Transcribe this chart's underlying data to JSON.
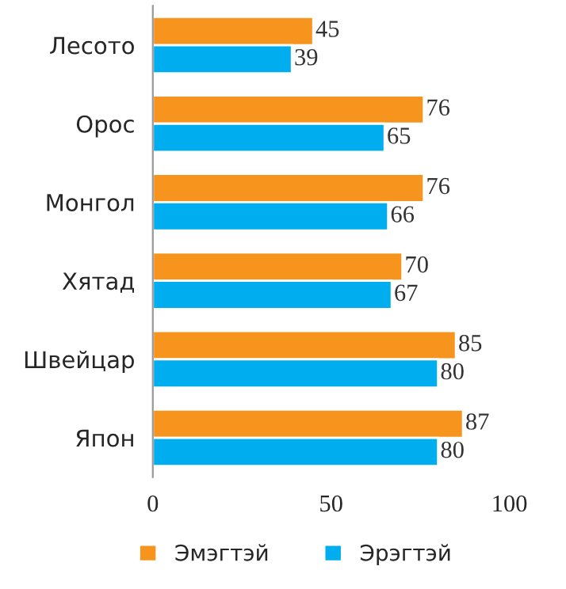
{
  "chart_data": {
    "type": "bar",
    "orientation": "horizontal",
    "categories": [
      "Лесото",
      "Орос",
      "Монгол",
      "Хятад",
      "Швейцар",
      "Япон"
    ],
    "series": [
      {
        "name": "Эмэгтэй",
        "color": "#f7941d",
        "values": [
          45,
          76,
          76,
          70,
          85,
          87
        ]
      },
      {
        "name": "Эрэгтэй",
        "color": "#00aeef",
        "values": [
          39,
          65,
          66,
          67,
          80,
          80
        ]
      }
    ],
    "xlim": [
      0,
      100
    ],
    "xticks": [
      0,
      50,
      100
    ],
    "grid": false,
    "legend": "bottom",
    "data_labels": true
  }
}
